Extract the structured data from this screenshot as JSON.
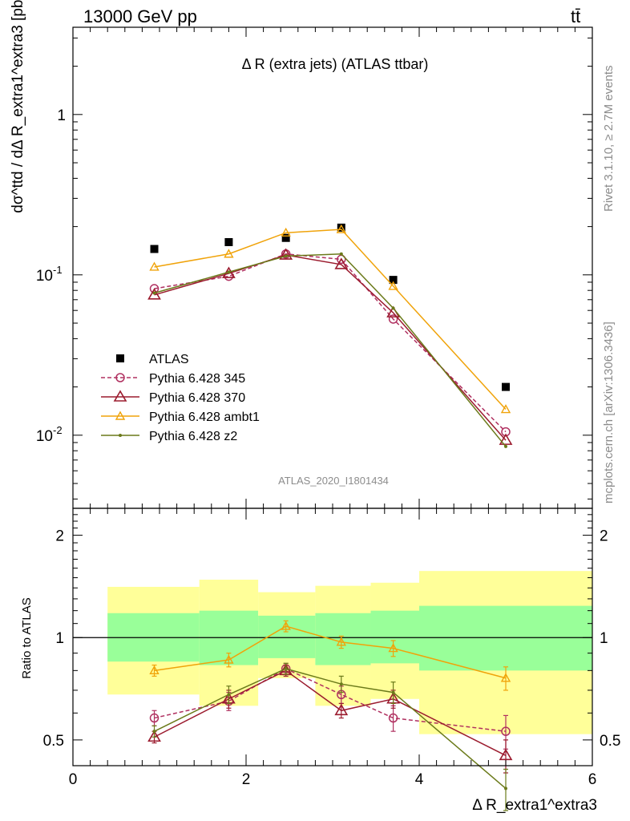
{
  "header": {
    "energy_label": "13000 GeV pp",
    "process_label": "tt̄"
  },
  "side_text": {
    "rivet": "Rivet 3.1.10, ≥ 2.7M events",
    "site": "mcplots.cern.ch [arXiv:1306.3436]"
  },
  "chart_data": [
    {
      "type": "line",
      "panel": "main",
      "title": "Δ R (extra jets) (ATLAS ttbar)",
      "analysis_tag": "ATLAS_2020_I1801434",
      "ylabel": "dσ^ttd / dΔ R_extra1^extra3 [pb]",
      "yscale": "log",
      "ylim": [
        0.0035,
        3.5
      ],
      "xlim": [
        0,
        6
      ],
      "ytick_labels": [
        "1",
        "10^-1",
        "10^-2"
      ],
      "ytick_values": [
        1,
        0.1,
        0.01
      ],
      "legend_position": "bottom-left",
      "x": [
        0.94,
        1.8,
        2.46,
        3.1,
        3.7,
        5.0
      ],
      "series": [
        {
          "name": "ATLAS",
          "color": "#000000",
          "marker": "filled-square",
          "line": "none",
          "values": [
            0.145,
            0.16,
            0.17,
            0.197,
            0.093,
            0.02
          ]
        },
        {
          "name": "Pythia 6.428 345",
          "color": "#b03060",
          "marker": "open-circle",
          "line": "dashed",
          "values": [
            0.082,
            0.098,
            0.135,
            0.125,
            0.053,
            0.0105
          ]
        },
        {
          "name": "Pythia 6.428 370",
          "color": "#9b1b2e",
          "marker": "open-triangle",
          "line": "solid",
          "values": [
            0.075,
            0.102,
            0.133,
            0.116,
            0.058,
            0.0093
          ]
        },
        {
          "name": "Pythia 6.428 ambt1",
          "color": "#f0a30a",
          "marker": "open-triangle-small",
          "line": "solid",
          "values": [
            0.112,
            0.135,
            0.183,
            0.192,
            0.085,
            0.0145
          ]
        },
        {
          "name": "Pythia 6.428 z2",
          "color": "#6b7a1a",
          "marker": "dot",
          "line": "solid",
          "values": [
            0.077,
            0.104,
            0.131,
            0.135,
            0.062,
            0.0085
          ]
        }
      ]
    },
    {
      "type": "line",
      "panel": "ratio",
      "ylabel": "Ratio to ATLAS",
      "xlabel": "Δ R_extra1^extra3",
      "yscale": "log",
      "ylim": [
        0.42,
        2.4
      ],
      "xlim": [
        0,
        6
      ],
      "xtick_labels": [
        "0",
        "2",
        "4",
        "6"
      ],
      "ytick_labels": [
        "0.5",
        "1",
        "2"
      ],
      "reference_line": 1,
      "bands": [
        {
          "xlo": 0.4,
          "xhi": 1.46,
          "stat_lo": 0.85,
          "stat_hi": 1.18,
          "tot_lo": 0.68,
          "tot_hi": 1.41
        },
        {
          "xlo": 1.46,
          "xhi": 2.14,
          "stat_lo": 0.83,
          "stat_hi": 1.2,
          "tot_lo": 0.63,
          "tot_hi": 1.48
        },
        {
          "xlo": 2.14,
          "xhi": 2.8,
          "stat_lo": 0.87,
          "stat_hi": 1.16,
          "tot_lo": 0.76,
          "tot_hi": 1.36
        },
        {
          "xlo": 2.8,
          "xhi": 3.44,
          "stat_lo": 0.83,
          "stat_hi": 1.18,
          "tot_lo": 0.63,
          "tot_hi": 1.42
        },
        {
          "xlo": 3.44,
          "xhi": 4.0,
          "stat_lo": 0.84,
          "stat_hi": 1.2,
          "tot_lo": 0.66,
          "tot_hi": 1.45
        },
        {
          "xlo": 4.0,
          "xhi": 6.0,
          "stat_lo": 0.8,
          "stat_hi": 1.24,
          "tot_lo": 0.52,
          "tot_hi": 1.57
        }
      ],
      "band_colors": {
        "stat": "#99ff99",
        "total": "#ffff99"
      },
      "x": [
        0.94,
        1.8,
        2.46,
        3.1,
        3.7,
        5.0
      ],
      "series": [
        {
          "name": "Pythia 6.428 345",
          "color": "#b03060",
          "marker": "open-circle",
          "line": "dashed",
          "values": [
            0.58,
            0.65,
            0.81,
            0.68,
            0.58,
            0.53
          ],
          "errors": [
            0.03,
            0.04,
            0.03,
            0.04,
            0.05,
            0.06
          ]
        },
        {
          "name": "Pythia 6.428 370",
          "color": "#9b1b2e",
          "marker": "open-triangle",
          "line": "solid",
          "values": [
            0.51,
            0.66,
            0.8,
            0.61,
            0.66,
            0.45
          ],
          "errors": [
            0.02,
            0.04,
            0.03,
            0.03,
            0.04,
            0.05
          ]
        },
        {
          "name": "Pythia 6.428 ambt1",
          "color": "#f0a30a",
          "marker": "open-triangle-small",
          "line": "solid",
          "values": [
            0.8,
            0.86,
            1.08,
            0.97,
            0.93,
            0.76
          ],
          "errors": [
            0.03,
            0.04,
            0.04,
            0.04,
            0.05,
            0.06
          ]
        },
        {
          "name": "Pythia 6.428 z2",
          "color": "#6b7a1a",
          "marker": "dot",
          "line": "solid",
          "values": [
            0.53,
            0.68,
            0.81,
            0.73,
            0.69,
            0.36
          ],
          "errors": [
            0.02,
            0.04,
            0.03,
            0.04,
            0.05,
            0.05
          ]
        }
      ]
    }
  ]
}
